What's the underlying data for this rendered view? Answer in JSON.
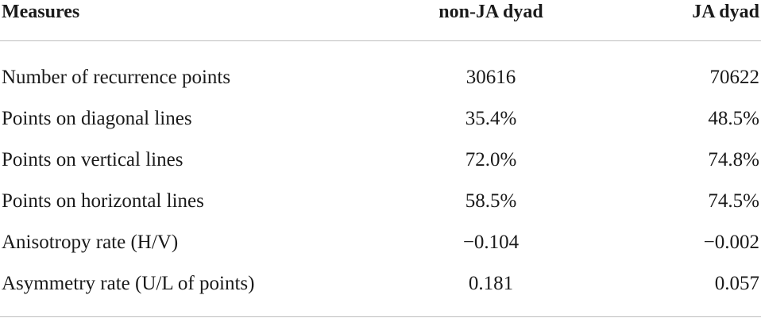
{
  "table": {
    "headers": {
      "measures": "Measures",
      "non_ja": "non-JA dyad",
      "ja": "JA dyad"
    },
    "rows": [
      {
        "measure": "Number of recurrence points",
        "non_ja": "30616",
        "ja": "70622"
      },
      {
        "measure": "Points on diagonal lines",
        "non_ja": "35.4%",
        "ja": "48.5%"
      },
      {
        "measure": "Points on vertical lines",
        "non_ja": "72.0%",
        "ja": "74.8%"
      },
      {
        "measure": "Points on horizontal lines",
        "non_ja": "58.5%",
        "ja": "74.5%"
      },
      {
        "measure": "Anisotropy rate (H/V)",
        "non_ja": "−0.104",
        "ja": "−0.002"
      },
      {
        "measure": "Asymmetry rate (U/L of points)",
        "non_ja": "0.181",
        "ja": "0.057"
      }
    ]
  }
}
